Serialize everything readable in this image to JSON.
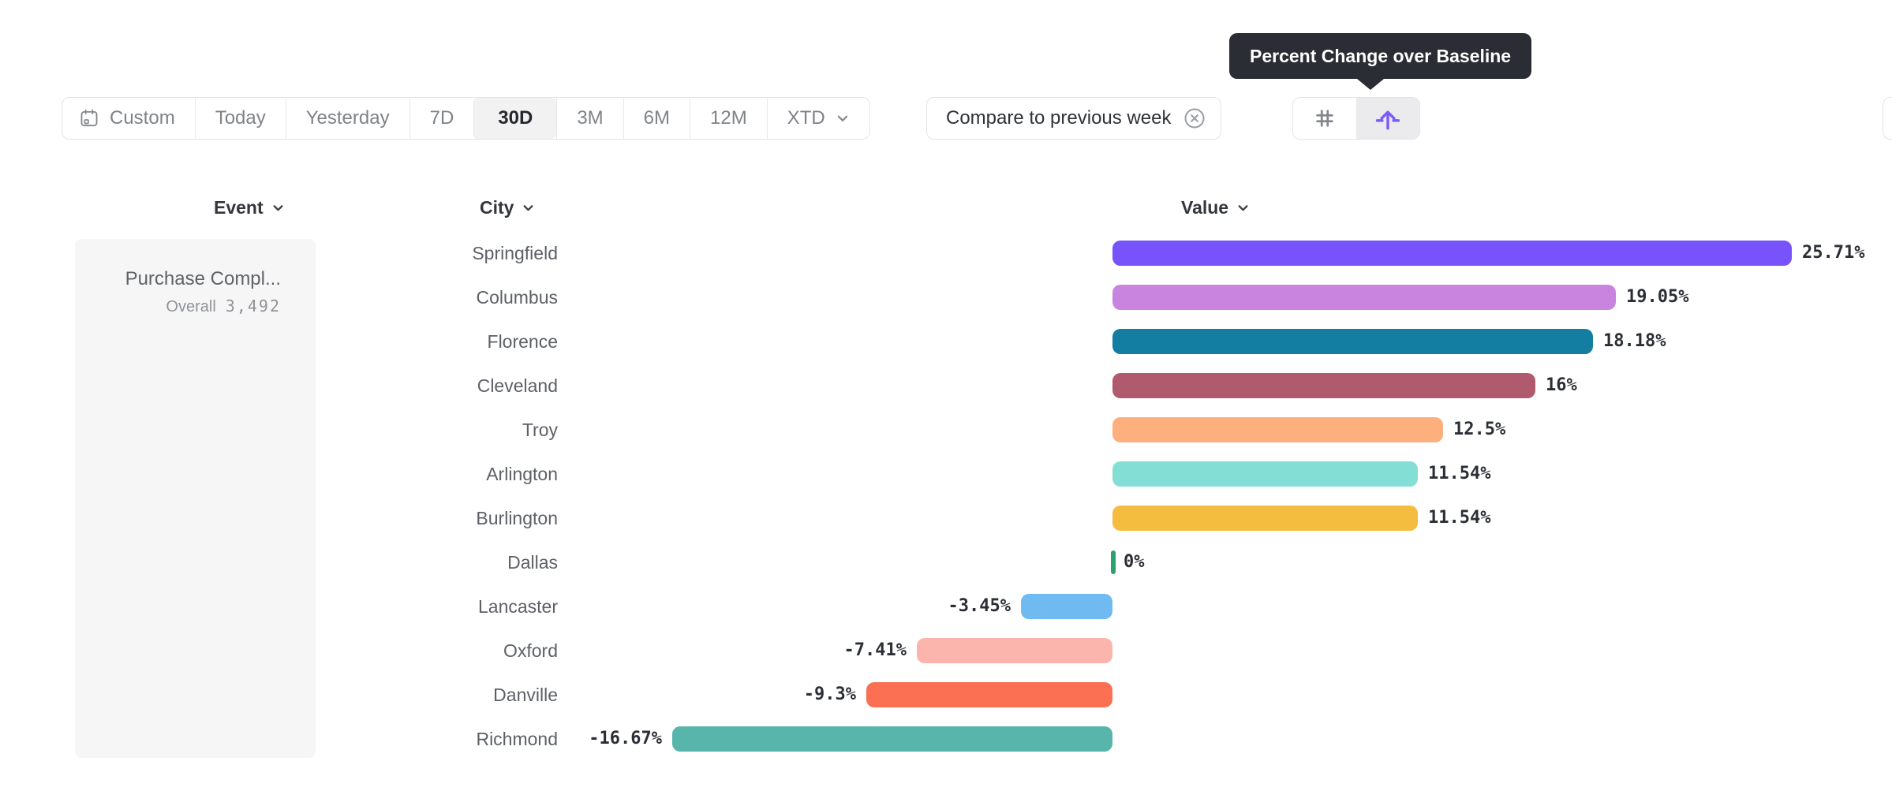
{
  "tooltip": {
    "text": "Percent Change over Baseline"
  },
  "toolbar": {
    "date_ranges": [
      {
        "label": "Custom",
        "icon": "calendar-icon",
        "selected": false
      },
      {
        "label": "Today",
        "selected": false
      },
      {
        "label": "Yesterday",
        "selected": false
      },
      {
        "label": "7D",
        "selected": false
      },
      {
        "label": "30D",
        "selected": true
      },
      {
        "label": "3M",
        "selected": false
      },
      {
        "label": "6M",
        "selected": false
      },
      {
        "label": "12M",
        "selected": false
      },
      {
        "label": "XTD",
        "icon": "chevron-down-icon",
        "selected": false
      }
    ],
    "compare_chip": {
      "label": "Compare to previous week",
      "icon": "x-circle-icon"
    },
    "view_toggle": [
      {
        "icon": "grid-icon",
        "selected": false
      },
      {
        "icon": "lift-icon",
        "selected": true
      }
    ]
  },
  "columns": {
    "event": "Event",
    "city": "City",
    "value": "Value"
  },
  "event_panel": {
    "title": "Purchase Compl...",
    "overall_label": "Overall",
    "overall_value": "3,492"
  },
  "chart_data": {
    "type": "bar",
    "orientation": "horizontal",
    "title": "Percent Change over Baseline",
    "value_format": "percent",
    "categories": [
      "Springfield",
      "Columbus",
      "Florence",
      "Cleveland",
      "Troy",
      "Arlington",
      "Burlington",
      "Dallas",
      "Lancaster",
      "Oxford",
      "Danville",
      "Richmond"
    ],
    "values": [
      25.71,
      19.05,
      18.18,
      16,
      12.5,
      11.54,
      11.54,
      0,
      -3.45,
      -7.41,
      -9.3,
      -16.67
    ],
    "labels": [
      "25.71%",
      "19.05%",
      "18.18%",
      "16%",
      "12.5%",
      "11.54%",
      "11.54%",
      "0%",
      "-3.45%",
      "-7.41%",
      "-9.3%",
      "-16.67%"
    ],
    "colors": [
      "#7852fa",
      "#c884de",
      "#137ea2",
      "#b05a6d",
      "#fdaf7d",
      "#83dfd5",
      "#f5bd3f",
      "#2da06f",
      "#6fbaf0",
      "#fbb5ac",
      "#fb7053",
      "#58b5ab"
    ],
    "xlim": [
      -16.67,
      25.71
    ],
    "baseline": 0,
    "grid": false,
    "legend": false
  },
  "colors": {
    "accent_purple": "#7a5bf7",
    "selected_bg": "#f2f2f3",
    "panel_bg": "#f6f6f7",
    "tooltip_bg": "#2b2d35",
    "border": "#e3e4e6",
    "text_dark": "#2b2e35",
    "text_gray": "#5d6066",
    "text_muted": "#8f9298"
  }
}
